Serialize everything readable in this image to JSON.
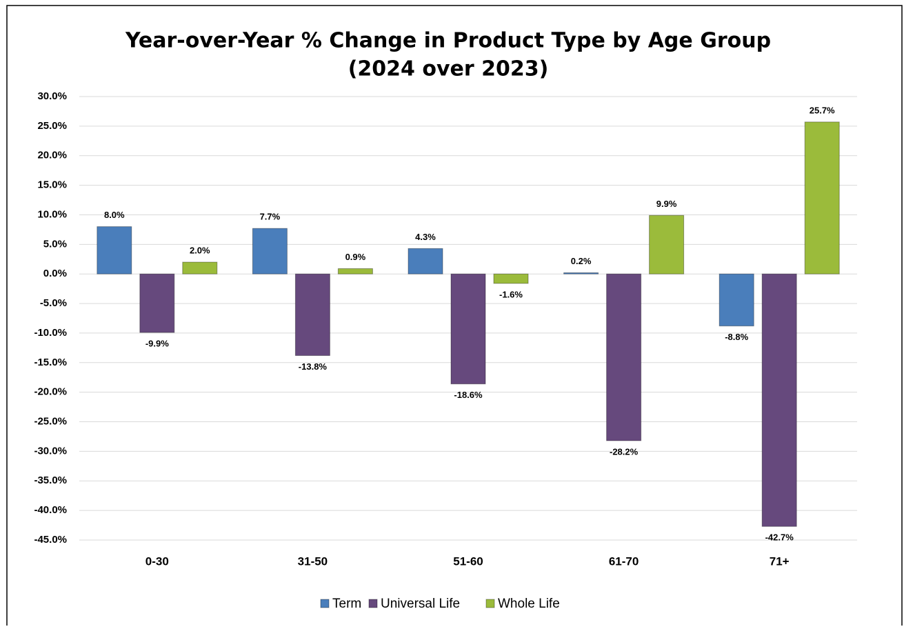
{
  "chart_data": {
    "type": "bar",
    "title": "Year-over-Year % Change in Product Type by Age Group",
    "subtitle": "(2024 over 2023)",
    "categories": [
      "0-30",
      "31-50",
      "51-60",
      "61-70",
      "71+"
    ],
    "series": [
      {
        "name": "Term",
        "color": "#4a7ebb",
        "values": [
          8.0,
          7.7,
          4.3,
          0.2,
          -8.8
        ],
        "value_labels": [
          "8.0%",
          "7.7%",
          "4.3%",
          "0.2%",
          "-8.8%"
        ]
      },
      {
        "name": "Universal Life",
        "color": "#66497d",
        "values": [
          -9.9,
          -13.8,
          -18.6,
          -28.2,
          -42.7
        ],
        "value_labels": [
          "-9.9%",
          "-13.8%",
          "-18.6%",
          "-28.2%",
          "-42.7%"
        ]
      },
      {
        "name": "Whole Life",
        "color": "#9bbb3b",
        "values": [
          2.0,
          0.9,
          -1.6,
          9.9,
          25.7
        ],
        "value_labels": [
          "2.0%",
          "0.9%",
          "-1.6%",
          "9.9%",
          "25.7%"
        ]
      }
    ],
    "ylim": [
      -45,
      30
    ],
    "yticks": [
      {
        "value": 30,
        "label": "30.0%"
      },
      {
        "value": 25,
        "label": "25.0%"
      },
      {
        "value": 20,
        "label": "20.0%"
      },
      {
        "value": 15,
        "label": "15.0%"
      },
      {
        "value": 10,
        "label": "10.0%"
      },
      {
        "value": 5,
        "label": "5.0%"
      },
      {
        "value": 0,
        "label": "0.0%"
      },
      {
        "value": -5,
        "label": "-5.0%"
      },
      {
        "value": -10,
        "label": "-10.0%"
      },
      {
        "value": -15,
        "label": "-15.0%"
      },
      {
        "value": -20,
        "label": "-20.0%"
      },
      {
        "value": -25,
        "label": "-25.0%"
      },
      {
        "value": -30,
        "label": "-30.0%"
      },
      {
        "value": -35,
        "label": "-35.0%"
      },
      {
        "value": -40,
        "label": "-40.0%"
      },
      {
        "value": -45,
        "label": "-45.0%"
      }
    ],
    "grid": true,
    "legend": "bottom"
  }
}
